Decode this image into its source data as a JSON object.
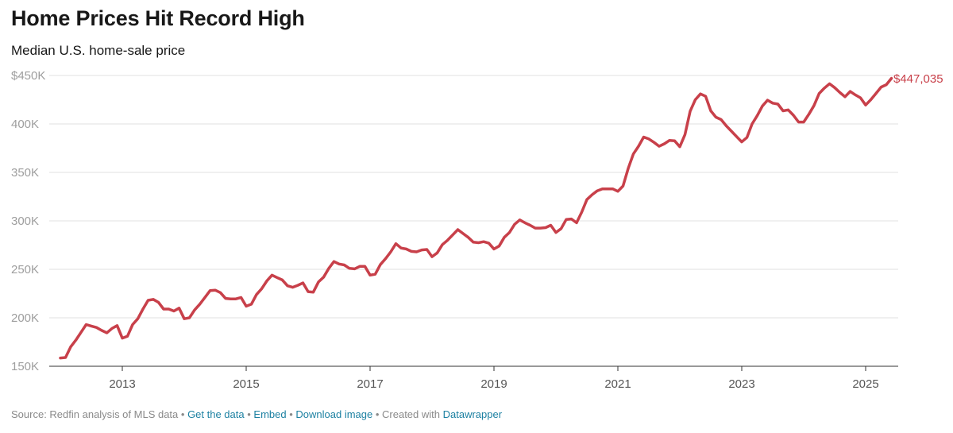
{
  "title": "Home Prices Hit Record High",
  "subtitle": "Median U.S. home-sale price",
  "footer": {
    "source": "Source: Redfin analysis of MLS data",
    "separator": " • ",
    "get_data": "Get the data",
    "embed": "Embed",
    "download": "Download image",
    "created_with": "Created with",
    "datawrapper": "Datawrapper"
  },
  "colors": {
    "line": "#c8404a",
    "grid": "#e2e2e2",
    "axis": "#9e9e9e",
    "link": "#1d81a2"
  },
  "chart_data": {
    "type": "line",
    "title": "Home Prices Hit Record High",
    "subtitle": "Median U.S. home-sale price",
    "xlabel": "",
    "ylabel": "",
    "ylim": [
      150000,
      450000
    ],
    "y_ticks": [
      150000,
      200000,
      250000,
      300000,
      350000,
      400000,
      450000
    ],
    "y_tick_labels": [
      "150K",
      "200K",
      "250K",
      "300K",
      "350K",
      "400K",
      "$450K"
    ],
    "x_ticks": [
      "2013",
      "2015",
      "2017",
      "2019",
      "2021",
      "2023",
      "2025"
    ],
    "grid": "horizontal",
    "end_label": "$447,035",
    "series": [
      {
        "x": [
          "2012-01",
          "2012-02",
          "2012-03",
          "2012-04",
          "2012-05",
          "2012-06",
          "2012-07",
          "2012-08",
          "2012-09",
          "2012-10",
          "2012-11",
          "2012-12",
          "2013-01",
          "2013-02",
          "2013-03",
          "2013-04",
          "2013-05",
          "2013-06",
          "2013-07",
          "2013-08",
          "2013-09",
          "2013-10",
          "2013-11",
          "2013-12",
          "2014-01",
          "2014-02",
          "2014-03",
          "2014-04",
          "2014-05",
          "2014-06",
          "2014-07",
          "2014-08",
          "2014-09",
          "2014-10",
          "2014-11",
          "2014-12",
          "2015-01",
          "2015-02",
          "2015-03",
          "2015-04",
          "2015-05",
          "2015-06",
          "2015-07",
          "2015-08",
          "2015-09",
          "2015-10",
          "2015-11",
          "2015-12",
          "2016-01",
          "2016-02",
          "2016-03",
          "2016-04",
          "2016-05",
          "2016-06",
          "2016-07",
          "2016-08",
          "2016-09",
          "2016-10",
          "2016-11",
          "2016-12",
          "2017-01",
          "2017-02",
          "2017-03",
          "2017-04",
          "2017-05",
          "2017-06",
          "2017-07",
          "2017-08",
          "2017-09",
          "2017-10",
          "2017-11",
          "2017-12",
          "2018-01",
          "2018-02",
          "2018-03",
          "2018-04",
          "2018-05",
          "2018-06",
          "2018-07",
          "2018-08",
          "2018-09",
          "2018-10",
          "2018-11",
          "2018-12",
          "2019-01",
          "2019-02",
          "2019-03",
          "2019-04",
          "2019-05",
          "2019-06",
          "2019-07",
          "2019-08",
          "2019-09",
          "2019-10",
          "2019-11",
          "2019-12",
          "2020-01",
          "2020-02",
          "2020-03",
          "2020-04",
          "2020-05",
          "2020-06",
          "2020-07",
          "2020-08",
          "2020-09",
          "2020-10",
          "2020-11",
          "2020-12",
          "2021-01",
          "2021-02",
          "2021-03",
          "2021-04",
          "2021-05",
          "2021-06",
          "2021-07",
          "2021-08",
          "2021-09",
          "2021-10",
          "2021-11",
          "2021-12",
          "2022-01",
          "2022-02",
          "2022-03",
          "2022-04",
          "2022-05",
          "2022-06",
          "2022-07",
          "2022-08",
          "2022-09",
          "2022-10",
          "2022-11",
          "2022-12",
          "2023-01",
          "2023-02",
          "2023-03",
          "2023-04",
          "2023-05",
          "2023-06",
          "2023-07",
          "2023-08",
          "2023-09",
          "2023-10",
          "2023-11",
          "2023-12",
          "2024-01",
          "2024-02",
          "2024-03",
          "2024-04",
          "2024-05",
          "2024-06",
          "2024-07",
          "2024-08",
          "2024-09",
          "2024-10",
          "2024-11",
          "2024-12",
          "2025-01",
          "2025-02",
          "2025-03",
          "2025-04",
          "2025-05",
          "2025-06"
        ],
        "values": [
          158500,
          159000,
          170000,
          177000,
          185000,
          193000,
          191500,
          190000,
          187000,
          184500,
          189000,
          192000,
          179000,
          181000,
          193000,
          199000,
          209000,
          218000,
          219000,
          216000,
          209000,
          209000,
          207000,
          210000,
          199000,
          200000,
          208000,
          214000,
          221000,
          228000,
          228500,
          226000,
          220000,
          219500,
          219500,
          221000,
          212000,
          214000,
          224000,
          230000,
          238000,
          244000,
          241500,
          239000,
          233000,
          231500,
          233500,
          236000,
          227000,
          226500,
          237000,
          242000,
          251000,
          258000,
          255500,
          254500,
          251000,
          250500,
          253000,
          253000,
          244000,
          245000,
          255000,
          261000,
          268000,
          276500,
          272000,
          271000,
          268500,
          268000,
          270000,
          270500,
          263000,
          267000,
          275500,
          280000,
          285500,
          291000,
          287000,
          283000,
          278000,
          277500,
          278500,
          277000,
          271000,
          274000,
          283000,
          288000,
          296500,
          301000,
          298000,
          295500,
          292500,
          292500,
          293000,
          295500,
          288000,
          292000,
          301500,
          302000,
          298000,
          309000,
          322000,
          327000,
          331000,
          333000,
          333000,
          333000,
          330500,
          336000,
          354000,
          369000,
          377000,
          386500,
          384500,
          381000,
          377000,
          379500,
          383000,
          382500,
          376500,
          389000,
          413000,
          425000,
          431000,
          428500,
          413500,
          407000,
          404500,
          398000,
          392500,
          387000,
          381500,
          386000,
          400000,
          408500,
          418500,
          424500,
          421500,
          420500,
          413500,
          414500,
          409000,
          402000,
          402000,
          410000,
          419000,
          431500,
          437000,
          441500,
          437500,
          432500,
          428000,
          433500,
          430000,
          427000,
          419500,
          425000,
          431500,
          438000,
          440500,
          447035
        ]
      }
    ]
  }
}
